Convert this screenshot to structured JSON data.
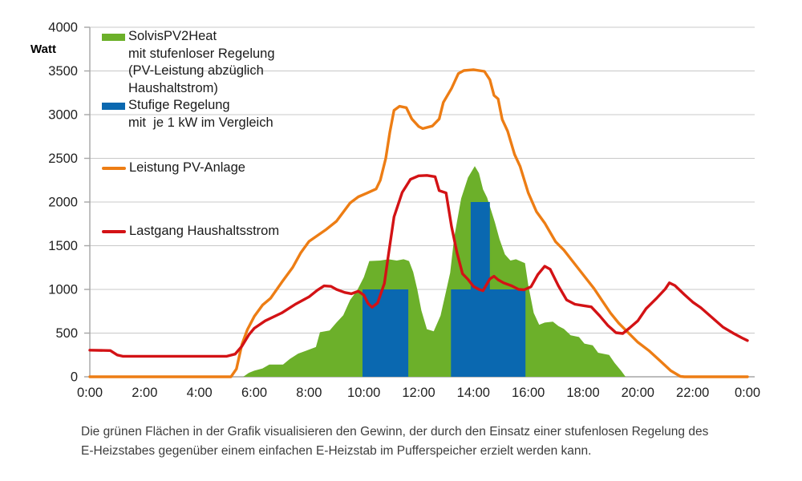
{
  "legend": {
    "items": [
      {
        "label": "SolvisPV2Heat\nmit stufenloser Regelung\n(PV-Leistung abzüglich\nHaushaltstrom)",
        "swatch": "green-area"
      },
      {
        "label": "Stufige Regelung\nmit  je 1 kW im Vergleich",
        "swatch": "blue-bar"
      },
      {
        "label": "Leistung PV-Anlage",
        "swatch": "orange-line"
      },
      {
        "label": "Lastgang Haushaltsstrom",
        "swatch": "red-line"
      }
    ]
  },
  "caption": {
    "line1": "Die grünen Flächen in der Grafik visualisieren den Gewinn, der durch den Einsatz einer stufenlosen Regelung des",
    "line2": "E-Heizstabes gegenüber einem einfachen E-Heizstab im Pufferspeicher erzielt werden kann."
  },
  "colors": {
    "green": "#6CB02A",
    "blue": "#0A68B0",
    "orange": "#ED7D14",
    "red": "#D31215",
    "grid": "#c8c8c8",
    "axis": "#a6a6a6",
    "axis_text": "#1f1f1f"
  },
  "chart_data": {
    "type": "area",
    "title": "",
    "xlabel": "",
    "ylabel": "Watt",
    "ylim": [
      0,
      4000
    ],
    "xlim_hours": [
      0,
      24
    ],
    "grid": "horizontal",
    "legend_position": "inside-top-left",
    "y_tick_labels": [
      "0",
      "500",
      "1000",
      "1500",
      "2000",
      "2500",
      "3000",
      "3500",
      "4000"
    ],
    "x_ticks": [
      {
        "t": 0,
        "label": "0:00"
      },
      {
        "t": 2,
        "label": "2:00"
      },
      {
        "t": 4,
        "label": "4:00"
      },
      {
        "t": 6,
        "label": "6:00"
      },
      {
        "t": 8,
        "label": "8:00"
      },
      {
        "t": 10,
        "label": "10:00"
      },
      {
        "t": 12,
        "label": "12:00"
      },
      {
        "t": 14,
        "label": "14:00"
      },
      {
        "t": 16,
        "label": "16:00"
      },
      {
        "t": 18,
        "label": "18:00"
      },
      {
        "t": 20,
        "label": "20:00"
      },
      {
        "t": 22,
        "label": "22:00"
      },
      {
        "t": 24,
        "label": "0:00"
      }
    ],
    "series": [
      {
        "name": "SolvisPV2Heat mit stufenloser Regelung (PV-Leistung abzüglich Haushaltstrom)",
        "kind": "area",
        "color_key": "green",
        "unit": "W",
        "points": [
          [
            5.6,
            0
          ],
          [
            5.8,
            45
          ],
          [
            6.0,
            70
          ],
          [
            6.3,
            95
          ],
          [
            6.55,
            140
          ],
          [
            7.05,
            140
          ],
          [
            7.3,
            205
          ],
          [
            7.6,
            265
          ],
          [
            7.95,
            305
          ],
          [
            8.25,
            340
          ],
          [
            8.4,
            510
          ],
          [
            8.75,
            530
          ],
          [
            9.0,
            620
          ],
          [
            9.25,
            705
          ],
          [
            9.5,
            880
          ],
          [
            9.75,
            985
          ],
          [
            10.0,
            1140
          ],
          [
            10.2,
            1325
          ],
          [
            10.6,
            1330
          ],
          [
            10.9,
            1345
          ],
          [
            11.2,
            1330
          ],
          [
            11.45,
            1345
          ],
          [
            11.65,
            1325
          ],
          [
            11.8,
            1200
          ],
          [
            11.95,
            1000
          ],
          [
            12.1,
            760
          ],
          [
            12.3,
            545
          ],
          [
            12.55,
            520
          ],
          [
            12.8,
            700
          ],
          [
            13.0,
            980
          ],
          [
            13.15,
            1190
          ],
          [
            13.3,
            1600
          ],
          [
            13.55,
            2040
          ],
          [
            13.8,
            2280
          ],
          [
            14.05,
            2410
          ],
          [
            14.2,
            2330
          ],
          [
            14.35,
            2145
          ],
          [
            14.5,
            2050
          ],
          [
            14.78,
            1770
          ],
          [
            14.95,
            1575
          ],
          [
            15.15,
            1400
          ],
          [
            15.35,
            1330
          ],
          [
            15.55,
            1345
          ],
          [
            15.88,
            1300
          ],
          [
            16.0,
            1050
          ],
          [
            16.2,
            730
          ],
          [
            16.4,
            595
          ],
          [
            16.6,
            620
          ],
          [
            16.9,
            630
          ],
          [
            17.1,
            580
          ],
          [
            17.3,
            548
          ],
          [
            17.55,
            475
          ],
          [
            17.85,
            455
          ],
          [
            18.05,
            380
          ],
          [
            18.35,
            360
          ],
          [
            18.55,
            275
          ],
          [
            18.95,
            250
          ],
          [
            19.15,
            160
          ],
          [
            19.4,
            65
          ],
          [
            19.55,
            0
          ]
        ]
      },
      {
        "name": "Stufige Regelung mit je 1 kW im Vergleich",
        "kind": "bars",
        "color_key": "blue",
        "unit": "W",
        "bars": [
          {
            "from": 9.95,
            "to": 11.62,
            "watt": 1000
          },
          {
            "from": 13.18,
            "to": 15.9,
            "watt": 1000
          },
          {
            "from": 13.9,
            "to": 14.6,
            "watt": 2000
          }
        ]
      },
      {
        "name": "Leistung PV-Anlage",
        "kind": "line",
        "color_key": "orange",
        "unit": "W",
        "points": [
          [
            0,
            0
          ],
          [
            5.15,
            0
          ],
          [
            5.35,
            90
          ],
          [
            5.55,
            370
          ],
          [
            5.75,
            540
          ],
          [
            6.0,
            690
          ],
          [
            6.3,
            820
          ],
          [
            6.6,
            900
          ],
          [
            7.0,
            1080
          ],
          [
            7.4,
            1250
          ],
          [
            7.7,
            1420
          ],
          [
            8.0,
            1550
          ],
          [
            8.6,
            1680
          ],
          [
            9.0,
            1780
          ],
          [
            9.5,
            1990
          ],
          [
            9.8,
            2060
          ],
          [
            10.1,
            2100
          ],
          [
            10.45,
            2150
          ],
          [
            10.6,
            2250
          ],
          [
            10.8,
            2500
          ],
          [
            10.95,
            2800
          ],
          [
            11.1,
            3050
          ],
          [
            11.3,
            3095
          ],
          [
            11.55,
            3080
          ],
          [
            11.75,
            2950
          ],
          [
            12.0,
            2865
          ],
          [
            12.15,
            2840
          ],
          [
            12.5,
            2870
          ],
          [
            12.75,
            2950
          ],
          [
            12.9,
            3140
          ],
          [
            13.2,
            3300
          ],
          [
            13.45,
            3470
          ],
          [
            13.65,
            3505
          ],
          [
            14.0,
            3515
          ],
          [
            14.4,
            3495
          ],
          [
            14.6,
            3400
          ],
          [
            14.75,
            3220
          ],
          [
            14.9,
            3180
          ],
          [
            15.05,
            2945
          ],
          [
            15.25,
            2810
          ],
          [
            15.5,
            2545
          ],
          [
            15.7,
            2410
          ],
          [
            16.0,
            2105
          ],
          [
            16.3,
            1890
          ],
          [
            16.6,
            1760
          ],
          [
            17.0,
            1545
          ],
          [
            17.3,
            1450
          ],
          [
            17.6,
            1330
          ],
          [
            18.0,
            1170
          ],
          [
            18.4,
            1010
          ],
          [
            18.7,
            870
          ],
          [
            19.0,
            730
          ],
          [
            19.3,
            615
          ],
          [
            19.6,
            520
          ],
          [
            20.0,
            395
          ],
          [
            20.4,
            300
          ],
          [
            20.8,
            185
          ],
          [
            21.2,
            70
          ],
          [
            21.55,
            5
          ],
          [
            21.7,
            0
          ],
          [
            24,
            0
          ]
        ]
      },
      {
        "name": "Lastgang Haushaltsstrom",
        "kind": "line",
        "color_key": "red",
        "unit": "W",
        "points": [
          [
            0,
            305
          ],
          [
            0.75,
            300
          ],
          [
            1.0,
            250
          ],
          [
            1.2,
            235
          ],
          [
            5.0,
            235
          ],
          [
            5.3,
            260
          ],
          [
            5.55,
            350
          ],
          [
            5.8,
            480
          ],
          [
            6.0,
            555
          ],
          [
            6.4,
            640
          ],
          [
            7.0,
            730
          ],
          [
            7.5,
            830
          ],
          [
            8.0,
            915
          ],
          [
            8.3,
            990
          ],
          [
            8.55,
            1040
          ],
          [
            8.8,
            1035
          ],
          [
            9.0,
            1000
          ],
          [
            9.3,
            965
          ],
          [
            9.55,
            950
          ],
          [
            9.8,
            980
          ],
          [
            10.0,
            935
          ],
          [
            10.15,
            840
          ],
          [
            10.3,
            795
          ],
          [
            10.5,
            845
          ],
          [
            10.75,
            1070
          ],
          [
            10.9,
            1400
          ],
          [
            11.1,
            1830
          ],
          [
            11.4,
            2110
          ],
          [
            11.7,
            2260
          ],
          [
            12.0,
            2300
          ],
          [
            12.3,
            2305
          ],
          [
            12.6,
            2290
          ],
          [
            12.75,
            2130
          ],
          [
            13.0,
            2105
          ],
          [
            13.2,
            1720
          ],
          [
            13.4,
            1420
          ],
          [
            13.6,
            1180
          ],
          [
            13.8,
            1115
          ],
          [
            14.0,
            1035
          ],
          [
            14.2,
            1000
          ],
          [
            14.35,
            985
          ],
          [
            14.6,
            1120
          ],
          [
            14.75,
            1150
          ],
          [
            14.9,
            1110
          ],
          [
            15.1,
            1075
          ],
          [
            15.4,
            1040
          ],
          [
            15.65,
            1000
          ],
          [
            15.85,
            995
          ],
          [
            16.1,
            1030
          ],
          [
            16.35,
            1170
          ],
          [
            16.6,
            1265
          ],
          [
            16.8,
            1230
          ],
          [
            17.1,
            1040
          ],
          [
            17.4,
            880
          ],
          [
            17.7,
            830
          ],
          [
            18.0,
            815
          ],
          [
            18.3,
            800
          ],
          [
            18.6,
            700
          ],
          [
            18.9,
            590
          ],
          [
            19.2,
            505
          ],
          [
            19.45,
            495
          ],
          [
            19.7,
            560
          ],
          [
            20.0,
            640
          ],
          [
            20.3,
            780
          ],
          [
            20.7,
            905
          ],
          [
            21.0,
            1005
          ],
          [
            21.15,
            1075
          ],
          [
            21.35,
            1045
          ],
          [
            21.7,
            940
          ],
          [
            22.0,
            855
          ],
          [
            22.3,
            790
          ],
          [
            22.7,
            680
          ],
          [
            23.1,
            570
          ],
          [
            23.5,
            495
          ],
          [
            23.8,
            445
          ],
          [
            24,
            415
          ]
        ]
      }
    ]
  }
}
